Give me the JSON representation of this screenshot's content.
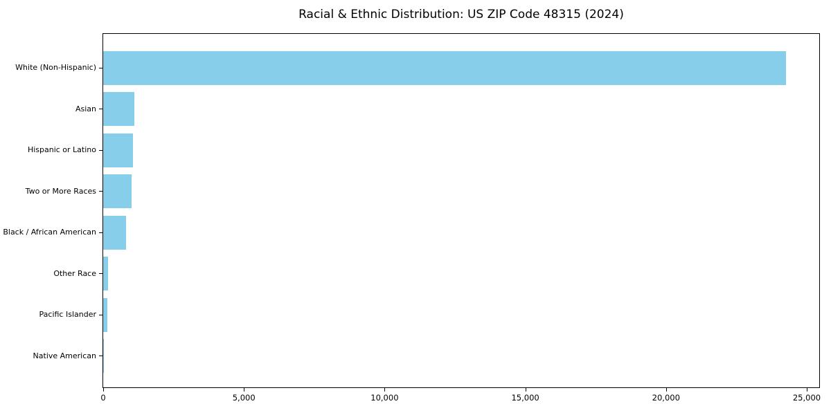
{
  "chart_data": {
    "type": "bar",
    "orientation": "horizontal",
    "title": "Racial & Ethnic Distribution: US ZIP Code 48315 (2024)",
    "categories": [
      "White (Non-Hispanic)",
      "Asian",
      "Hispanic or Latino",
      "Two or More Races",
      "Black / African American",
      "Other Race",
      "Pacific Islander",
      "Native American"
    ],
    "values": [
      24250,
      1100,
      1050,
      1000,
      810,
      160,
      150,
      20
    ],
    "bar_color": "#87CEEB",
    "xlabel": "",
    "ylabel": "",
    "xlim": [
      0,
      25443
    ],
    "x_ticks": [
      0,
      5000,
      10000,
      15000,
      20000,
      25000
    ],
    "x_tick_labels": [
      "0",
      "5,000",
      "10,000",
      "15,000",
      "20,000",
      "25,000"
    ],
    "grid": false,
    "legend": null,
    "background_color": "#ffffff",
    "text_color": "#000000"
  }
}
